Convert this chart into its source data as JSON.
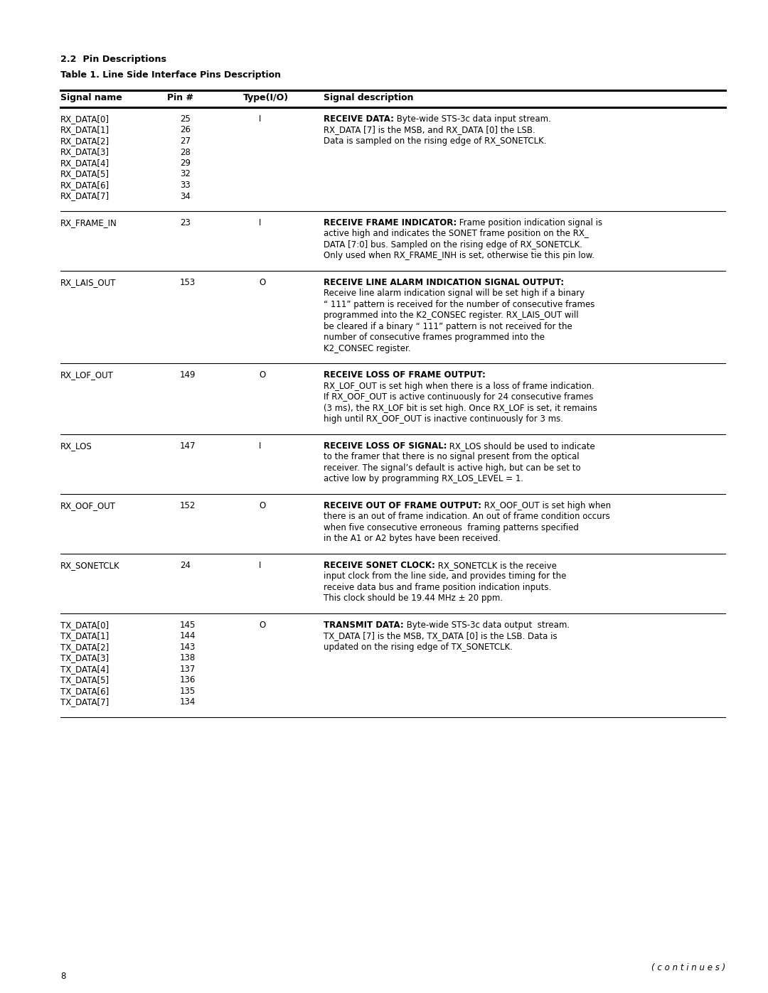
{
  "bg_color": "#ffffff",
  "section_title": "2.2  Pin Descriptions",
  "table_title": "Table 1. Line Side Interface Pins Description",
  "col_headers": [
    "Signal name",
    "Pin #",
    "Type(I/O)",
    "Signal description"
  ],
  "page_number": "8",
  "continues_text": "( c o n t i n u e s )",
  "rows": [
    {
      "signals": [
        "RX_DATA[0]",
        "RX_DATA[1]",
        "RX_DATA[2]",
        "RX_DATA[3]",
        "RX_DATA[4]",
        "RX_DATA[5]",
        "RX_DATA[6]",
        "RX_DATA[7]"
      ],
      "pins": [
        "25",
        "26",
        "27",
        "28",
        "29",
        "32",
        "33",
        "34"
      ],
      "type": "I",
      "desc_bold": "RECEIVE DATA:",
      "desc_rest": " Byte-wide STS-3c data input stream.\nRX_DATA [7] is the MSB, and RX_DATA [0] the LSB.\nData is sampled on the rising edge of RX_SONETCLK."
    },
    {
      "signals": [
        "RX_FRAME_IN"
      ],
      "pins": [
        "23"
      ],
      "type": "I",
      "desc_bold": "RECEIVE FRAME INDICATOR:",
      "desc_rest": " Frame position indication signal is\nactive high and indicates the SONET frame position on the RX_\nDATA [7:0] bus. Sampled on the rising edge of RX_SONETCLK.\nOnly used when RX_FRAME_INH is set, otherwise tie this pin low."
    },
    {
      "signals": [
        "RX_LAIS_OUT"
      ],
      "pins": [
        "153"
      ],
      "type": "O",
      "desc_bold": "RECEIVE LINE ALARM INDICATION SIGNAL OUTPUT:",
      "desc_rest": "\nReceive line alarm indication signal will be set high if a binary\n“ 111” pattern is received for the number of consecutive frames\nprogrammed into the K2_CONSEC register. RX_LAIS_OUT will\nbe cleared if a binary “ 111” pattern is not received for the\nnumber of consecutive frames programmed into the\nK2_CONSEC register."
    },
    {
      "signals": [
        "RX_LOF_OUT"
      ],
      "pins": [
        "149"
      ],
      "type": "O",
      "desc_bold": "RECEIVE LOSS OF FRAME OUTPUT:",
      "desc_rest": "\nRX_LOF_OUT is set high when there is a loss of frame indication.\nIf RX_OOF_OUT is active continuously for 24 consecutive frames\n(3 ms), the RX_LOF bit is set high. Once RX_LOF is set, it remains\nhigh until RX_OOF_OUT is inactive continuously for 3 ms."
    },
    {
      "signals": [
        "RX_LOS"
      ],
      "pins": [
        "147"
      ],
      "type": "I",
      "desc_bold": "RECEIVE LOSS OF SIGNAL:",
      "desc_rest": " RX_LOS should be used to indicate\nto the framer that there is no signal present from the optical\nreceiver. The signal’s default is active high, but can be set to\nactive low by programming RX_LOS_LEVEL = 1."
    },
    {
      "signals": [
        "RX_OOF_OUT"
      ],
      "pins": [
        "152"
      ],
      "type": "O",
      "desc_bold": "RECEIVE OUT OF FRAME OUTPUT:",
      "desc_rest": " RX_OOF_OUT is set high when\nthere is an out of frame indication. An out of frame condition occurs\nwhen five consecutive erroneous  framing patterns specified\nin the A1 or A2 bytes have been received."
    },
    {
      "signals": [
        "RX_SONETCLK"
      ],
      "pins": [
        "24"
      ],
      "type": "I",
      "desc_bold": "RECEIVE SONET CLOCK:",
      "desc_rest": " RX_SONETCLK is the receive\ninput clock from the line side, and provides timing for the\nreceive data bus and frame position indication inputs.\nThis clock should be 19.44 MHz ± 20 ppm."
    },
    {
      "signals": [
        "TX_DATA[0]",
        "TX_DATA[1]",
        "TX_DATA[2]",
        "TX_DATA[3]",
        "TX_DATA[4]",
        "TX_DATA[5]",
        "TX_DATA[6]",
        "TX_DATA[7]"
      ],
      "pins": [
        "145",
        "144",
        "143",
        "138",
        "137",
        "136",
        "135",
        "134"
      ],
      "type": "O",
      "desc_bold": "TRANSMIT DATA:",
      "desc_rest": " Byte-wide STS-3c data output  stream.\nTX_DATA [7] is the MSB, TX_DATA [0] is the LSB. Data is\nupdated on the rising edge of TX_SONETCLK."
    }
  ]
}
